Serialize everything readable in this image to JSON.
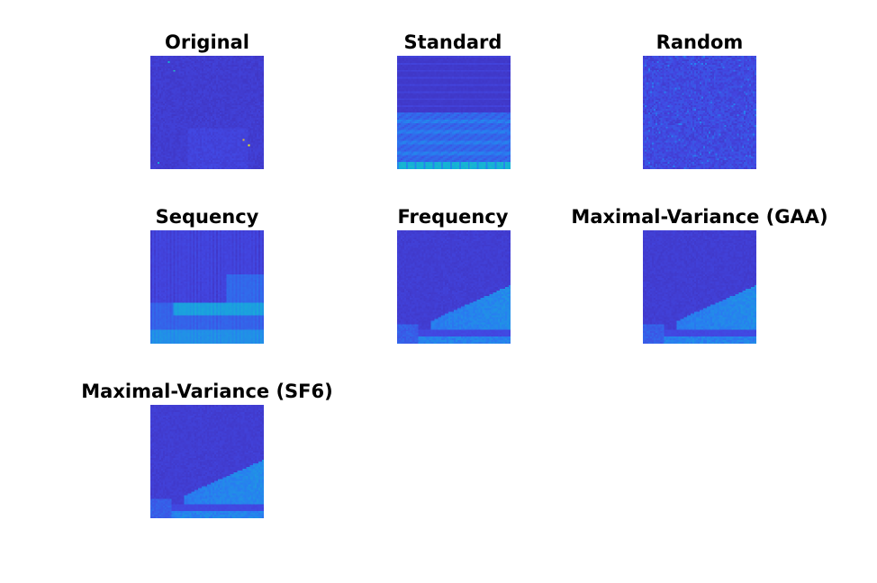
{
  "figure": {
    "colormap": "parula",
    "colors": {
      "background": "#3f32b6",
      "mid": "#2a7fe6",
      "high": "#1fb2da",
      "peak": "#f2e23a"
    }
  },
  "chart_data": [
    {
      "type": "heatmap",
      "title": "Original",
      "pattern": "uniform-with-speckles"
    },
    {
      "type": "heatmap",
      "title": "Standard",
      "pattern": "banded-bottom"
    },
    {
      "type": "heatmap",
      "title": "Random",
      "pattern": "noise"
    },
    {
      "type": "heatmap",
      "title": "Sequency",
      "pattern": "vertical-stripes-blocks"
    },
    {
      "type": "heatmap",
      "title": "Frequency",
      "pattern": "wedge-bottom-right"
    },
    {
      "type": "heatmap",
      "title": "Maximal-Variance (GAA)",
      "pattern": "wedge-bottom-right"
    },
    {
      "type": "heatmap",
      "title": "Maximal-Variance (SF6)",
      "pattern": "wedge-bottom-right"
    }
  ]
}
